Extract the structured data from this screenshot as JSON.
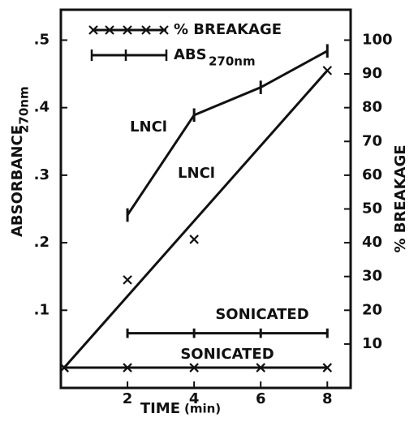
{
  "chart_data": {
    "type": "line",
    "x_label": "TIME",
    "x_label_unit": "(min)",
    "y_label": "ABSORBANCE",
    "y_label_sub": "270nm",
    "y2_label": "% BREAKAGE",
    "xlim": [
      0,
      8.7
    ],
    "xticks": [
      2,
      4,
      6,
      8
    ],
    "ylim": [
      -0.015,
      0.545
    ],
    "yticks": [
      {
        "value": 0.1,
        "label": ".1"
      },
      {
        "value": 0.2,
        "label": ".2"
      },
      {
        "value": 0.3,
        "label": ".3"
      },
      {
        "value": 0.4,
        "label": ".4"
      },
      {
        "value": 0.5,
        "label": ".5"
      }
    ],
    "y2lim": [
      -3,
      109
    ],
    "y2ticks": [
      10,
      20,
      30,
      40,
      50,
      60,
      70,
      80,
      90,
      100
    ],
    "color": "#111111",
    "legend": [
      {
        "label": "% BREAKAGE",
        "marker": "x"
      },
      {
        "label": "ABS",
        "sub": "270nm",
        "marker": "errorbar"
      }
    ],
    "series": [
      {
        "axis": "y",
        "marker": "errorbar",
        "x": [
          2,
          4,
          6,
          8
        ],
        "values": [
          0.241,
          0.389,
          0.43,
          0.484
        ],
        "errors": [
          0.01,
          0.01,
          0.01,
          0.01
        ]
      },
      {
        "axis": "y",
        "marker": "errorbar",
        "x": [
          2,
          4,
          6,
          8
        ],
        "values": [
          0.066,
          0.066,
          0.066,
          0.066
        ],
        "errors": [
          0.007,
          0.007,
          0.007,
          0.007
        ]
      },
      {
        "axis": "y2",
        "marker": "x",
        "x": [
          0.1,
          2,
          4,
          8
        ],
        "values": [
          3,
          29,
          41,
          91
        ],
        "fit": {
          "x": [
            0.1,
            8
          ],
          "values": [
            3,
            91
          ]
        }
      },
      {
        "axis": "y2",
        "marker": "x",
        "x": [
          0.1,
          2,
          4,
          6,
          8
        ],
        "values": [
          3,
          3,
          3,
          3,
          3
        ]
      }
    ],
    "annotations": [
      "LNCl",
      "LNCl",
      "SONICATED",
      "SONICATED"
    ]
  }
}
